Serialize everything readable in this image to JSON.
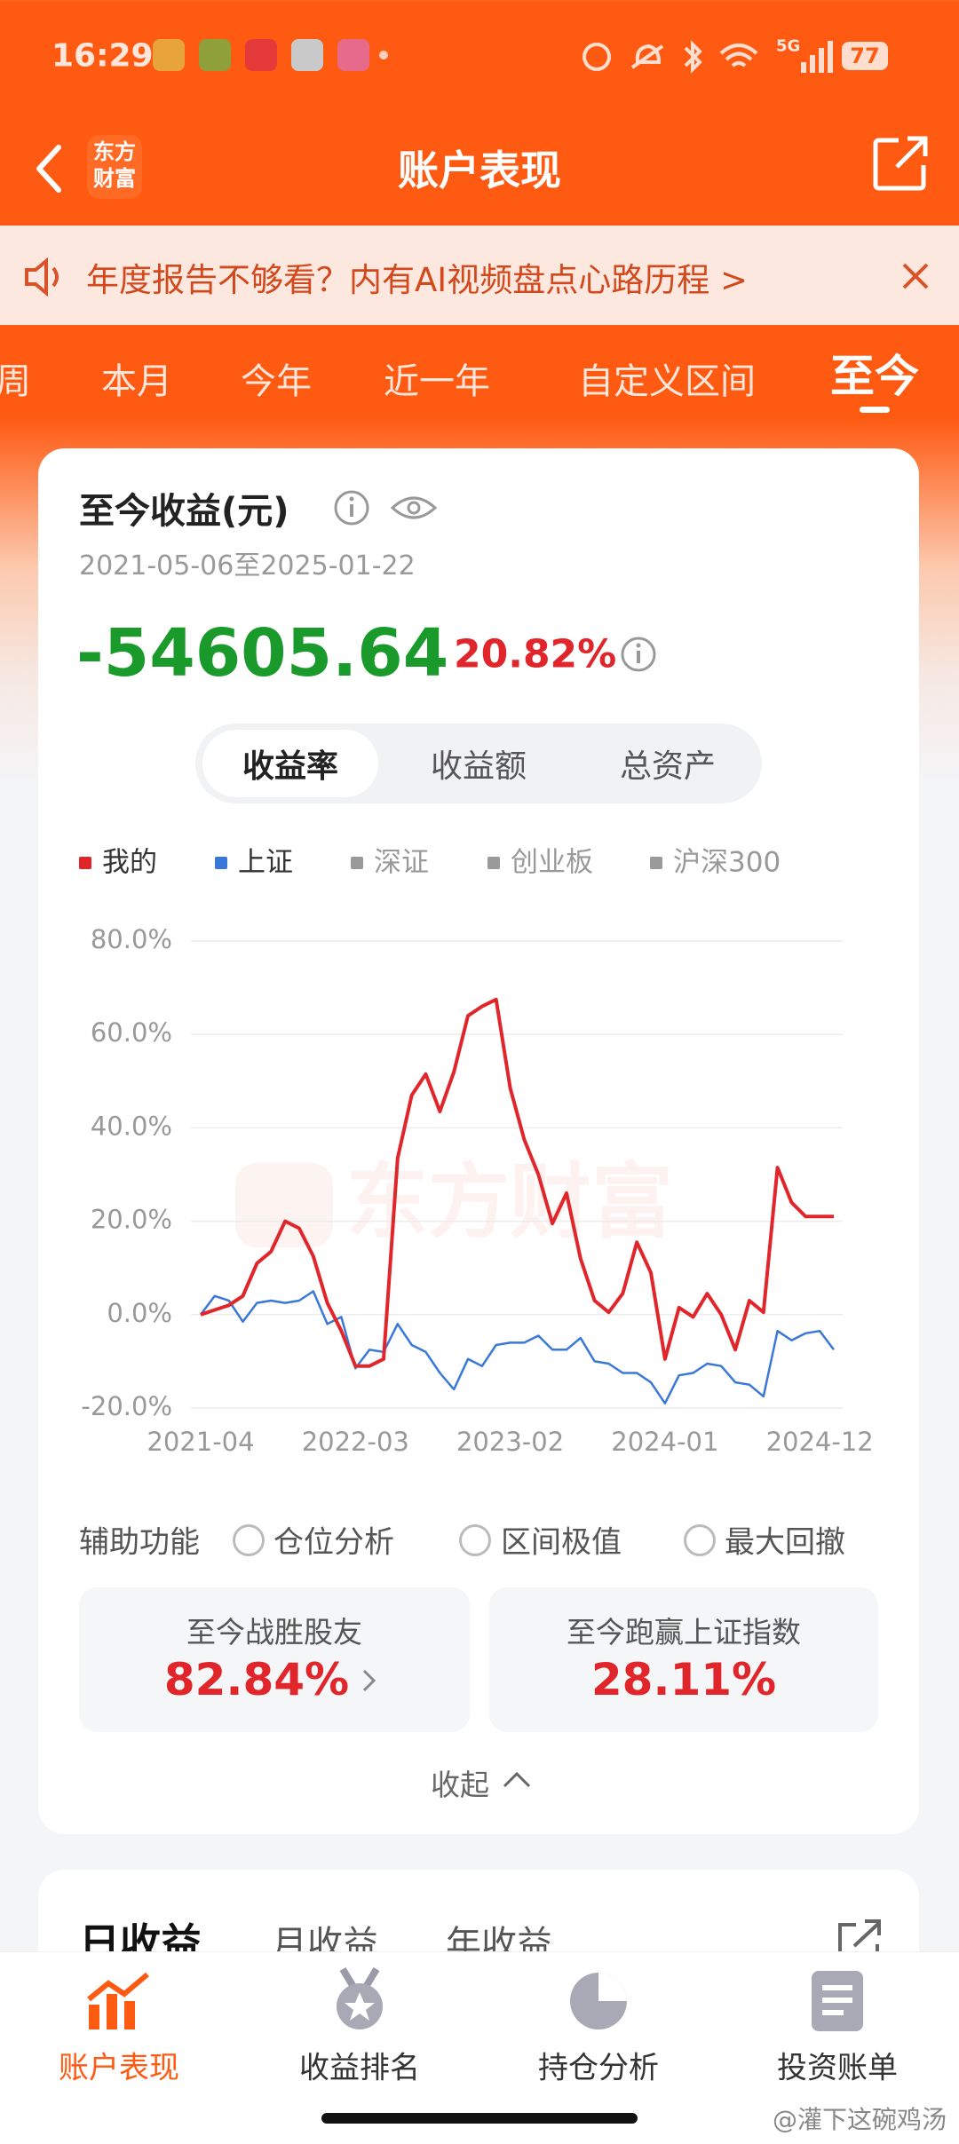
{
  "status_bar": {
    "time": "16:29",
    "network": "5G",
    "battery": "77"
  },
  "header": {
    "logo": [
      "东方",
      "财富"
    ],
    "title": "账户表现"
  },
  "banner": {
    "text": "年度报告不够看？内有AI视频盘点心路历程 >"
  },
  "period_tabs": {
    "items": [
      "周",
      "本月",
      "今年",
      "近一年",
      "自定义区间",
      "至今"
    ],
    "selected": 5
  },
  "summary": {
    "title": "至今收益(元)",
    "date_range": "2021-05-06至2025-01-22",
    "profit": "-54605.64",
    "return": "20.82%"
  },
  "segments": {
    "items": [
      "收益率",
      "收益额",
      "总资产"
    ],
    "selected": 0
  },
  "chart_data": {
    "type": "line",
    "x": [
      "2021-04",
      "2021-05",
      "2021-06",
      "2021-07",
      "2021-08",
      "2021-09",
      "2021-10",
      "2021-11",
      "2021-12",
      "2022-01",
      "2022-02",
      "2022-03",
      "2022-04",
      "2022-05",
      "2022-06",
      "2022-07",
      "2022-08",
      "2022-09",
      "2022-10",
      "2022-11",
      "2022-12",
      "2023-01",
      "2023-02",
      "2023-03",
      "2023-04",
      "2023-05",
      "2023-06",
      "2023-07",
      "2023-08",
      "2023-09",
      "2023-10",
      "2023-11",
      "2023-12",
      "2024-01",
      "2024-02",
      "2024-03",
      "2024-04",
      "2024-05",
      "2024-06",
      "2024-07",
      "2024-08",
      "2024-09",
      "2024-10",
      "2024-11",
      "2024-12",
      "2025-01"
    ],
    "series": [
      {
        "name": "我的",
        "color": "#e0262b",
        "values": [
          0,
          1,
          2,
          4,
          11,
          13.5,
          20,
          18.5,
          12.5,
          2.5,
          -3.5,
          -11,
          -11,
          -9.5,
          33.5,
          47,
          51.5,
          43.5,
          52,
          64,
          66,
          67.5,
          48.5,
          37.5,
          30,
          19.5,
          26,
          12,
          3,
          0.5,
          4.5,
          15.5,
          9,
          -9.5,
          1.5,
          -0.5,
          4.5,
          0,
          -7.5,
          3,
          0.5,
          31.5,
          24,
          21,
          21,
          21
        ]
      },
      {
        "name": "上证",
        "color": "#3a78d8",
        "values": [
          0,
          4,
          3,
          -1.5,
          2.5,
          3,
          2.5,
          3,
          5,
          -2,
          -0.5,
          -11.5,
          -7.5,
          -8,
          -2,
          -6.5,
          -8,
          -12.5,
          -16,
          -9.5,
          -11,
          -6.5,
          -6,
          -6,
          -4.5,
          -7.5,
          -7.5,
          -5,
          -10,
          -10.5,
          -12.5,
          -12.5,
          -14.5,
          -19,
          -13,
          -12.5,
          -10.5,
          -11,
          -14.5,
          -15,
          -17.5,
          -3.5,
          -5.5,
          -4,
          -3.5,
          -7.5
        ]
      }
    ],
    "inactive_series": [
      {
        "name": "深证",
        "color": "#9a9a9a"
      },
      {
        "name": "创业板",
        "color": "#9a9a9a"
      },
      {
        "name": "沪深300",
        "color": "#9a9a9a"
      }
    ],
    "ylim": [
      -20,
      80
    ],
    "yticks": [
      {
        "value": 80,
        "label": "80.0%"
      },
      {
        "value": 60,
        "label": "60.0%"
      },
      {
        "value": 40,
        "label": "40.0%"
      },
      {
        "value": 20,
        "label": "20.0%"
      },
      {
        "value": 0,
        "label": "0.0%"
      },
      {
        "value": -20,
        "label": "-20.0%"
      }
    ],
    "xticks": [
      "2021-04",
      "2022-03",
      "2023-02",
      "2024-01",
      "2024-12"
    ],
    "grid": true,
    "watermark": "东方财富"
  },
  "tools": {
    "label": "辅助功能",
    "options": [
      "仓位分析",
      "区间极值",
      "最大回撤"
    ]
  },
  "stats": [
    {
      "label": "至今战胜股友",
      "value": "82.84%"
    },
    {
      "label": "至今跑赢上证指数",
      "value": "28.11%"
    }
  ],
  "collapse": "收起",
  "earnings_tabs": {
    "items": [
      "日收益",
      "月收益",
      "年收益"
    ],
    "selected": 0
  },
  "bottom_nav": {
    "items": [
      "账户表现",
      "收益排名",
      "持仓分析",
      "投资账单"
    ],
    "selected": 0
  },
  "credit": "@灌下这碗鸡汤"
}
